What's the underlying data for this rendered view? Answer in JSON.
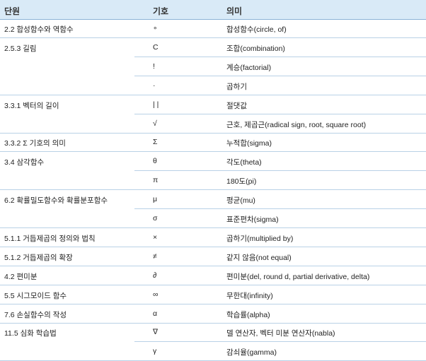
{
  "headers": {
    "unit": "단원",
    "symbol": "기호",
    "meaning": "의미"
  },
  "rows": [
    {
      "unit": "2.2 합성함수와 역함수",
      "symbol": "∘",
      "meaning": "합성함수(circle, of)"
    },
    {
      "unit": "2.5.3 길림",
      "symbol": "C",
      "meaning": "조합(combination)"
    },
    {
      "unit": "",
      "symbol": "!",
      "meaning": "계승(factorial)"
    },
    {
      "unit": "",
      "symbol": "·",
      "meaning": "곱하기"
    },
    {
      "unit": "3.3.1 벡터의 길이",
      "symbol": "| |",
      "meaning": "절댓값"
    },
    {
      "unit": "",
      "symbol": "√",
      "meaning": "근호, 제곱근(radical sign, root, square root)"
    },
    {
      "unit": "3.3.2 Σ 기호의 의미",
      "symbol": "Σ",
      "meaning": "누적합(sigma)"
    },
    {
      "unit": "3.4 삼각함수",
      "symbol": "θ",
      "meaning": "각도(theta)"
    },
    {
      "unit": "",
      "symbol": "π",
      "meaning": "180도(pi)"
    },
    {
      "unit": "6.2 확률밀도함수와 확률분포함수",
      "symbol": "μ",
      "meaning": "평균(mu)"
    },
    {
      "unit": "",
      "symbol": "σ",
      "meaning": "표준편차(sigma)"
    },
    {
      "unit": "5.1.1 거듭제곱의 정의와 법칙",
      "symbol": "×",
      "meaning": "곱하기(multiplied by)"
    },
    {
      "unit": "5.1.2 거듭제곱의 확장",
      "symbol": "≠",
      "meaning": "같지 않음(not equal)"
    },
    {
      "unit": "4.2 편미분",
      "symbol": "∂",
      "meaning": "편미분(del, round d, partial derivative, delta)"
    },
    {
      "unit": "5.5 시그모이드 함수",
      "symbol": "∞",
      "meaning": "무한대(infinity)"
    },
    {
      "unit": "7.6 손실함수의 작성",
      "symbol": "α",
      "meaning": "학습률(alpha)"
    },
    {
      "unit": "11.5 심화 학습법",
      "symbol": "∇",
      "meaning": "델 연산자, 벡터 미분 연산자(nabla)"
    },
    {
      "unit": "",
      "symbol": "γ",
      "meaning": "감쇠율(gamma)"
    }
  ]
}
